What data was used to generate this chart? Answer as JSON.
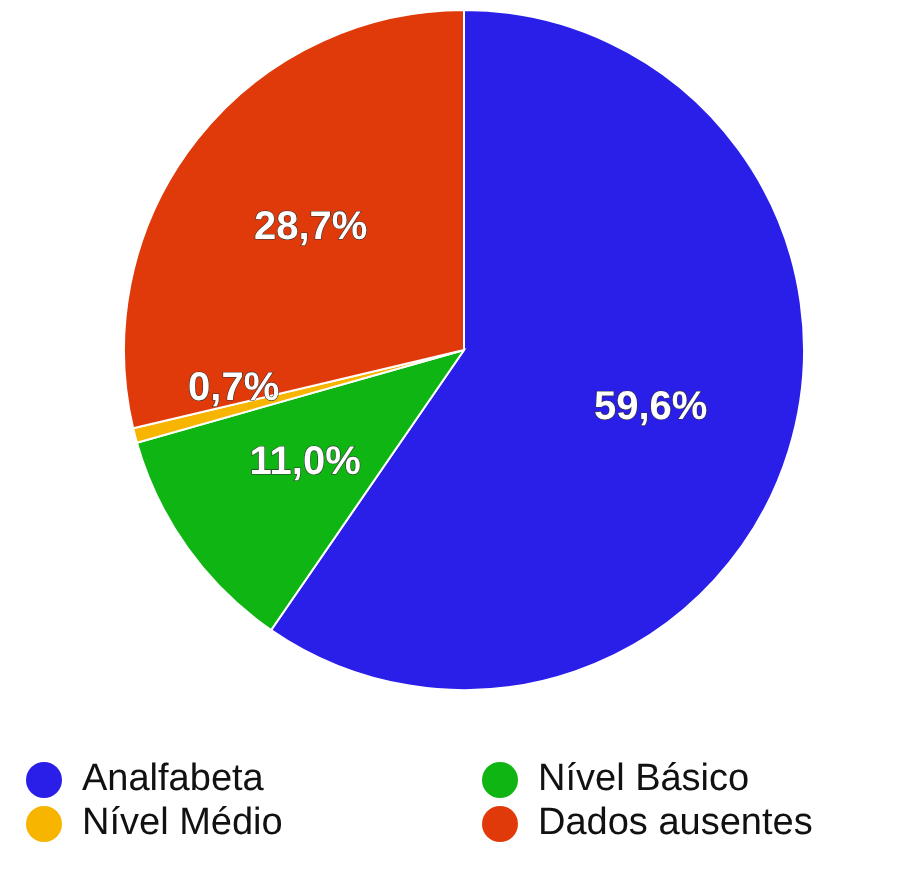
{
  "chart_data": {
    "type": "pie",
    "categories": [
      "Analfabeta",
      "Nível Básico",
      "Nível Médio",
      "Dados ausentes"
    ],
    "values": [
      59.6,
      11.0,
      0.7,
      28.7
    ],
    "colors": [
      "#2a1fe8",
      "#0fb512",
      "#f7b500",
      "#e03a0a"
    ],
    "value_labels": [
      "59,6%",
      "11,0%",
      "0,7%",
      "28,7%"
    ],
    "legend": "bottom"
  }
}
